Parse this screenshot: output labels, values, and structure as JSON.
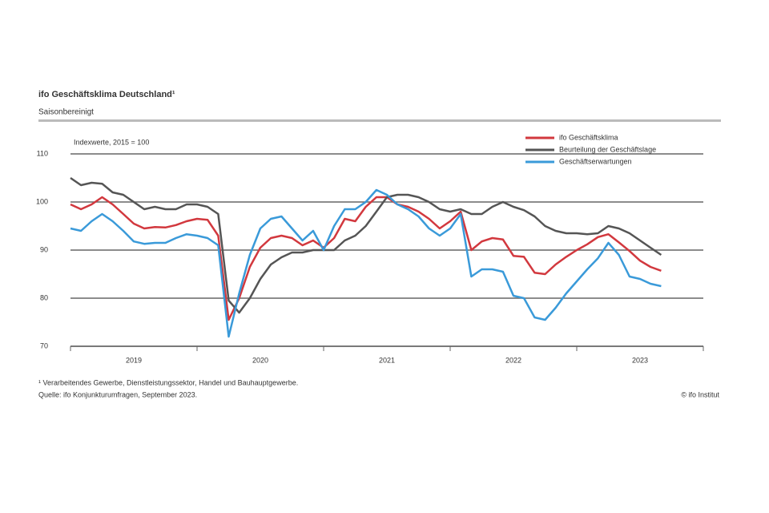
{
  "chart_data": {
    "type": "line",
    "title": "ifo Geschäftsklima Deutschland¹",
    "subtitle": "Saisonbereinigt",
    "annotation": "Indexwerte, 2015 = 100",
    "footnote": "¹ Verarbeitendes Gewerbe, Dienstleistungssektor, Handel und Bauhauptgewerbe.",
    "source": "Quelle: ifo Konjunkturumfragen, September 2023.",
    "copyright": "© ifo Institut",
    "x": [
      2019.0,
      2019.083,
      2019.167,
      2019.25,
      2019.333,
      2019.417,
      2019.5,
      2019.583,
      2019.667,
      2019.75,
      2019.833,
      2019.917,
      2020.0,
      2020.083,
      2020.167,
      2020.25,
      2020.333,
      2020.417,
      2020.5,
      2020.583,
      2020.667,
      2020.75,
      2020.833,
      2020.917,
      2021.0,
      2021.083,
      2021.167,
      2021.25,
      2021.333,
      2021.417,
      2021.5,
      2021.583,
      2021.667,
      2021.75,
      2021.833,
      2021.917,
      2022.0,
      2022.083,
      2022.167,
      2022.25,
      2022.333,
      2022.417,
      2022.5,
      2022.583,
      2022.667,
      2022.75,
      2022.833,
      2022.917,
      2023.0,
      2023.083,
      2023.167,
      2023.25,
      2023.333,
      2023.417,
      2023.5,
      2023.583,
      2023.667
    ],
    "series": [
      {
        "name": "ifo Geschäftsklima",
        "color": "#d2383e",
        "values": [
          99.5,
          98.5,
          99.5,
          101,
          99.5,
          97.5,
          95.5,
          94.5,
          94.8,
          94.7,
          95.2,
          96.0,
          96.5,
          96.3,
          93,
          75.5,
          80,
          86.5,
          90.5,
          92.5,
          93,
          92.5,
          91,
          92,
          90.5,
          92.5,
          96.5,
          96,
          99,
          101,
          101,
          99.5,
          99,
          98,
          96.5,
          94.5,
          96,
          98,
          90,
          91.8,
          92.5,
          92.2,
          88.8,
          88.6,
          85.3,
          85,
          87,
          88.6,
          90,
          91.2,
          92.7,
          93.3,
          91.6,
          89.8,
          87.8,
          86.5,
          85.7
        ]
      },
      {
        "name": "Beurteilung der Geschäftslage",
        "color": "#555555",
        "values": [
          105,
          103.5,
          104,
          103.8,
          102,
          101.5,
          100,
          98.5,
          99,
          98.5,
          98.5,
          99.5,
          99.5,
          99,
          97.5,
          79.5,
          77,
          80,
          84,
          87,
          88.5,
          89.5,
          89.5,
          90,
          90,
          90,
          92,
          93,
          95,
          98,
          101,
          101.5,
          101.5,
          101,
          100,
          98.5,
          98,
          98.5,
          97.5,
          97.5,
          99,
          100,
          99,
          98.3,
          97,
          95,
          94,
          93.5,
          93.5,
          93.3,
          93.5,
          95,
          94.5,
          93.5,
          92,
          90.5,
          89
        ]
      },
      {
        "name": "Geschäftserwartungen",
        "color": "#3a9ad9",
        "values": [
          94.5,
          94,
          96,
          97.5,
          96,
          94,
          91.8,
          91.3,
          91.5,
          91.5,
          92.5,
          93.3,
          93,
          92.5,
          91,
          72,
          81,
          89,
          94.5,
          96.5,
          97,
          94.5,
          92,
          94,
          90,
          95,
          98.5,
          98.5,
          100,
          102.5,
          101.5,
          99.5,
          98.5,
          97,
          94.5,
          93,
          94.5,
          97.5,
          84.5,
          86,
          86,
          85.5,
          80.5,
          80,
          76,
          75.5,
          78,
          81,
          83.5,
          86,
          88.3,
          91.5,
          89,
          84.5,
          84,
          83,
          82.5
        ]
      }
    ],
    "xlim": [
      2019,
      2024
    ],
    "xticks": [
      2019,
      2020,
      2021,
      2022,
      2023,
      2024
    ],
    "year_labels": [
      "2019",
      "2020",
      "2021",
      "2022",
      "2023"
    ],
    "ylim": [
      70,
      110
    ],
    "yticks": [
      70,
      80,
      90,
      100,
      110
    ],
    "grid": true,
    "legend": "top-right"
  }
}
